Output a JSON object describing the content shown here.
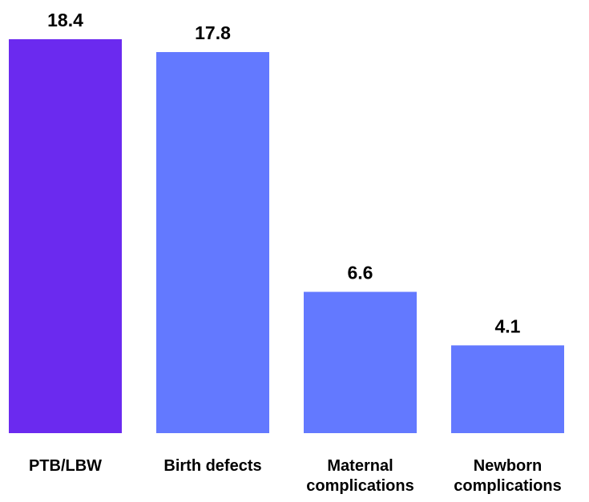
{
  "chart_data": {
    "type": "bar",
    "categories": [
      [
        "PTB/LBW"
      ],
      [
        "Birth defects"
      ],
      [
        "Maternal",
        "complications"
      ],
      [
        "Newborn",
        "complications"
      ]
    ],
    "values": [
      18.4,
      17.8,
      6.6,
      4.1
    ],
    "value_labels": [
      "18.4",
      "17.8",
      "6.6",
      "4.1"
    ],
    "bar_colors": [
      "#6b2aef",
      "#6379ff",
      "#6379ff",
      "#6379ff"
    ],
    "ylim": [
      0,
      18.4
    ],
    "grid": false,
    "legend": "none",
    "title": "",
    "xlabel": "",
    "ylabel": ""
  }
}
